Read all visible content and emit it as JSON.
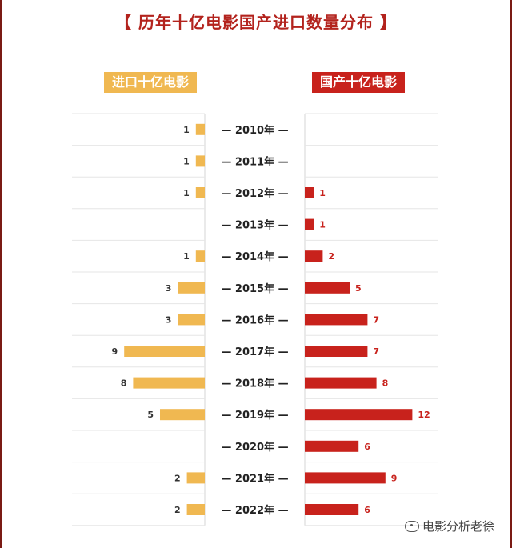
{
  "title": "【 历年十亿电影国产进口数量分布 】",
  "legend": {
    "imported": "进口十亿电影",
    "domestic": "国产十亿电影"
  },
  "watermark": "电影分析老徐",
  "colors": {
    "imported": "#f0b851",
    "domestic": "#c8221c",
    "title": "#b3231d"
  },
  "chart_data": {
    "type": "bar",
    "orientation": "horizontal-butterfly",
    "categories": [
      "2010年",
      "2011年",
      "2012年",
      "2013年",
      "2014年",
      "2015年",
      "2016年",
      "2017年",
      "2018年",
      "2019年",
      "2020年",
      "2021年",
      "2022年"
    ],
    "series": [
      {
        "name": "进口十亿电影",
        "values": [
          1,
          1,
          1,
          0,
          1,
          3,
          3,
          9,
          8,
          5,
          0,
          2,
          2
        ]
      },
      {
        "name": "国产十亿电影",
        "values": [
          0,
          0,
          1,
          1,
          2,
          5,
          7,
          7,
          8,
          12,
          6,
          9,
          6
        ]
      }
    ]
  }
}
